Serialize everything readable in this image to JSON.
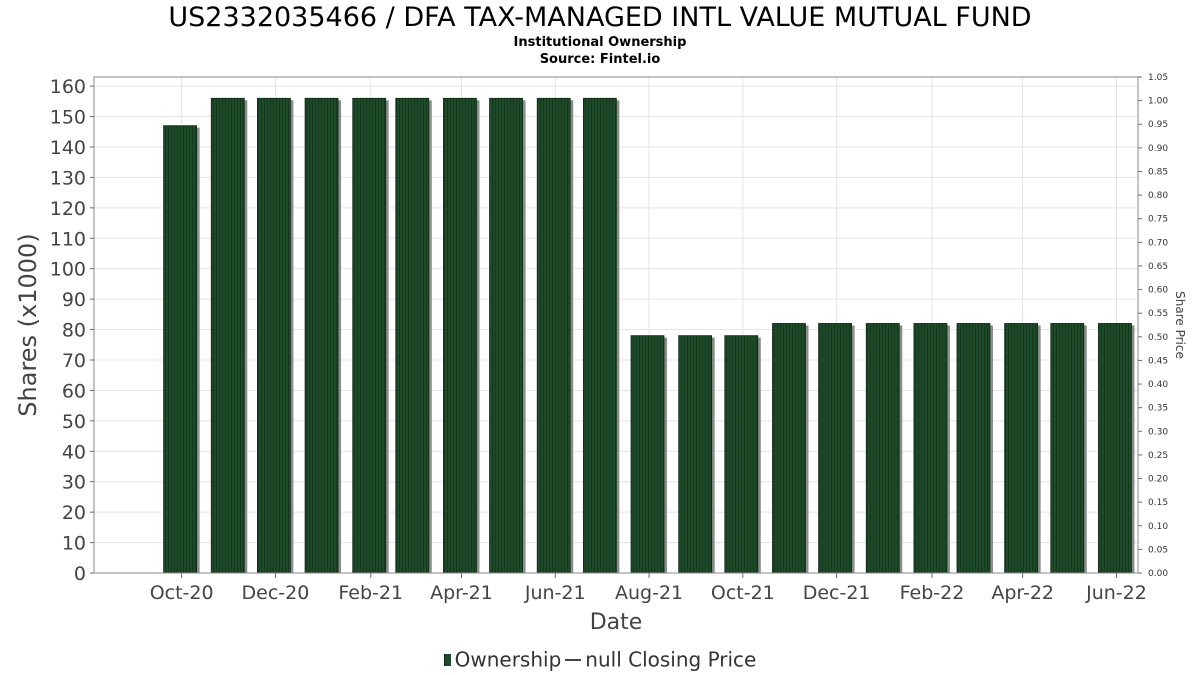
{
  "title": "US2332035466 / DFA TAX-MANAGED INTL VALUE MUTUAL FUND",
  "subtitle1": "Institutional Ownership",
  "subtitle2": "Source: Fintel.io",
  "legend": {
    "series1": "Ownership",
    "series2": "null Closing Price"
  },
  "colors": {
    "bar": "#1f4a2a",
    "bar_shadow": "#8c8c8c",
    "grid": "#e3e3e3"
  },
  "chart_data": {
    "type": "bar",
    "xlabel": "Date",
    "ylabel": "Shares (x1000)",
    "y2label": "Share Price",
    "ylim": [
      0,
      163
    ],
    "y2lim": [
      0,
      1.05
    ],
    "yticks": [
      0,
      10,
      20,
      30,
      40,
      50,
      60,
      70,
      80,
      90,
      100,
      110,
      120,
      130,
      140,
      150,
      160
    ],
    "y2ticks": [
      "0.00",
      "0.05",
      "0.10",
      "0.15",
      "0.20",
      "0.25",
      "0.30",
      "0.35",
      "0.40",
      "0.45",
      "0.50",
      "0.55",
      "0.60",
      "0.65",
      "0.70",
      "0.75",
      "0.80",
      "0.85",
      "0.90",
      "0.95",
      "1.00",
      "1.05"
    ],
    "xticks": [
      "Oct-20",
      "Dec-20",
      "Feb-21",
      "Apr-21",
      "Jun-21",
      "Aug-21",
      "Oct-21",
      "Dec-21",
      "Feb-22",
      "Apr-22",
      "Jun-22"
    ],
    "grid": true,
    "legend_position": "bottom",
    "series": [
      {
        "name": "Ownership",
        "dates": [
          "2020-09-30",
          "2020-10-31",
          "2020-11-30",
          "2020-12-31",
          "2021-01-31",
          "2021-02-28",
          "2021-03-31",
          "2021-04-30",
          "2021-05-31",
          "2021-06-30",
          "2021-07-31",
          "2021-08-31",
          "2021-09-30",
          "2021-10-31",
          "2021-11-30",
          "2021-12-31",
          "2022-01-31",
          "2022-02-28",
          "2022-03-31",
          "2022-04-30",
          "2022-05-31"
        ],
        "values": [
          147,
          156,
          156,
          156,
          156,
          156,
          156,
          156,
          156,
          156,
          78,
          78,
          78,
          82,
          82,
          82,
          82,
          82,
          82,
          82,
          82
        ]
      }
    ]
  }
}
